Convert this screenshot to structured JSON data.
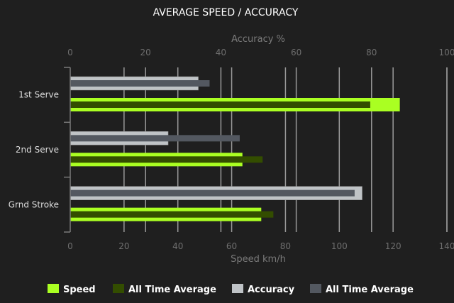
{
  "chart_data": {
    "type": "bar",
    "orientation": "horizontal",
    "title": "AVERAGE SPEED / ACCURACY",
    "categories": [
      "1st Serve",
      "2nd Serve",
      "Grnd Stroke"
    ],
    "x_bottom": {
      "label": "Speed km/h",
      "range": [
        0,
        140
      ],
      "ticks": [
        0,
        20,
        40,
        60,
        80,
        100,
        120,
        140
      ]
    },
    "x_top": {
      "label": "Accuracy %",
      "range": [
        0,
        100
      ],
      "ticks": [
        0,
        20,
        40,
        60,
        80,
        100
      ]
    },
    "grid": true,
    "legend_placement": "bottom",
    "series": [
      {
        "name": "Speed",
        "axis": "bottom",
        "color": "#aaff22",
        "values": [
          122.5,
          64,
          71
        ]
      },
      {
        "name": "All Time Average",
        "axis": "bottom",
        "color": "#334d00",
        "values": [
          111.5,
          71.5,
          75.5
        ]
      },
      {
        "name": "Accuracy",
        "axis": "top",
        "color": "#bfc3c6",
        "values": [
          34,
          26,
          77.5
        ]
      },
      {
        "name": "All Time Average",
        "axis": "top",
        "color": "#535860",
        "values": [
          37,
          45,
          75.5
        ]
      }
    ]
  }
}
